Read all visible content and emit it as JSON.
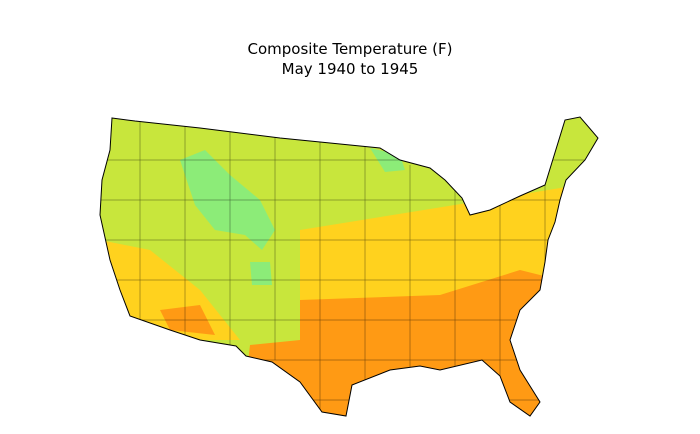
{
  "header": {
    "title": "Composite Temperature (F)",
    "subtitle": "May 1940 to 1945"
  }
}
